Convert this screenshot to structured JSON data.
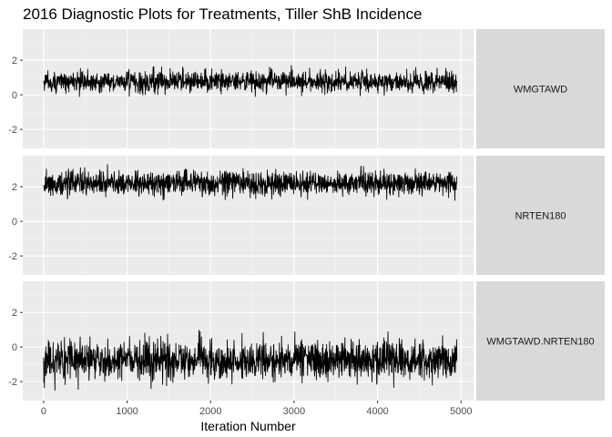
{
  "chart_data": {
    "type": "line",
    "title": "2016 Diagnostic Plots for Treatments, Tiller ShB Incidence",
    "xlabel": "Iteration Number",
    "ylabel": "",
    "xlim": [
      -250,
      5150
    ],
    "ylim": [
      -3.1,
      3.8
    ],
    "x_ticks": [
      0,
      1000,
      2000,
      3000,
      4000,
      5000
    ],
    "x_tick_labels": [
      "0",
      "1000",
      "2000",
      "3000",
      "4000",
      "5000"
    ],
    "y_ticks": [
      -2,
      0,
      2
    ],
    "y_tick_labels": [
      "-2",
      "0",
      "2"
    ],
    "n_iterations": 4950,
    "grid": true,
    "panels": [
      {
        "label": "WMGTAWD",
        "mean": 0.75,
        "sd": 0.3,
        "min": -0.1,
        "max": 2.0
      },
      {
        "label": "NRTEN180",
        "mean": 2.2,
        "sd": 0.35,
        "min": 1.2,
        "max": 3.5
      },
      {
        "label": "WMGTAWD.NRTEN180",
        "mean": -0.75,
        "sd": 0.55,
        "min": -2.6,
        "max": 1.0
      }
    ]
  },
  "colors": {
    "panel_background": "#ebebeb",
    "grid_major": "#ffffff",
    "strip_background": "#d9d9d9",
    "line": "#000000"
  }
}
